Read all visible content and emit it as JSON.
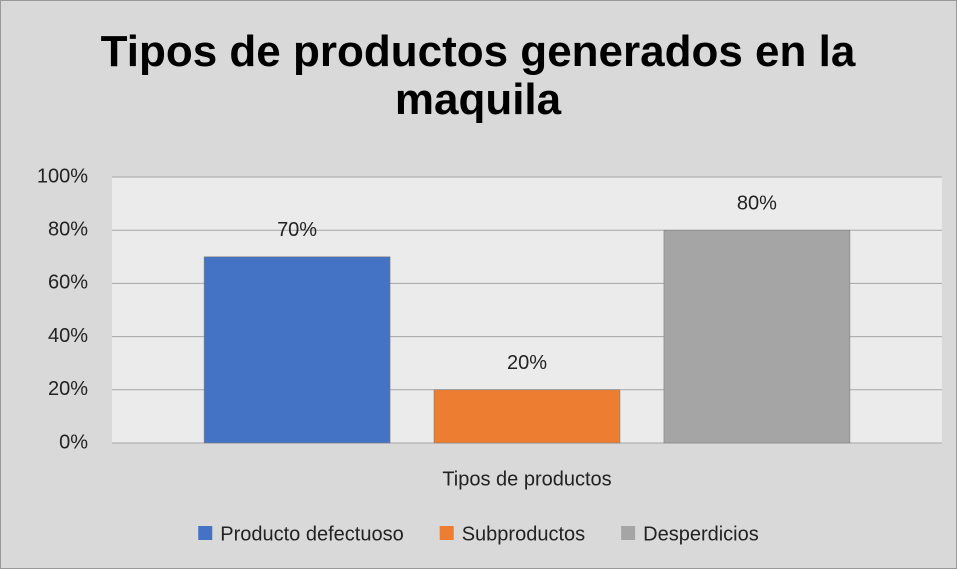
{
  "chart_data": {
    "type": "bar",
    "title": "Tipos de productos generados en la maquila",
    "categories": [
      "Tipos de productos"
    ],
    "series": [
      {
        "name": "Producto defectuoso",
        "color": "#4472c4",
        "values": [
          70
        ],
        "value_labels": [
          "70%"
        ]
      },
      {
        "name": "Subproductos",
        "color": "#ed7d31",
        "values": [
          20
        ],
        "value_labels": [
          "20%"
        ]
      },
      {
        "name": "Desperdicios",
        "color": "#a5a5a5",
        "values": [
          80
        ],
        "value_labels": [
          "80%"
        ]
      }
    ],
    "ylim": [
      0,
      100
    ],
    "yticks": [
      {
        "value": 0,
        "label": "0%"
      },
      {
        "value": 20,
        "label": "20%"
      },
      {
        "value": 40,
        "label": "40%"
      },
      {
        "value": 60,
        "label": "60%"
      },
      {
        "value": 80,
        "label": "80%"
      },
      {
        "value": 100,
        "label": "100%"
      }
    ],
    "grid": true,
    "legend": "bottom"
  }
}
